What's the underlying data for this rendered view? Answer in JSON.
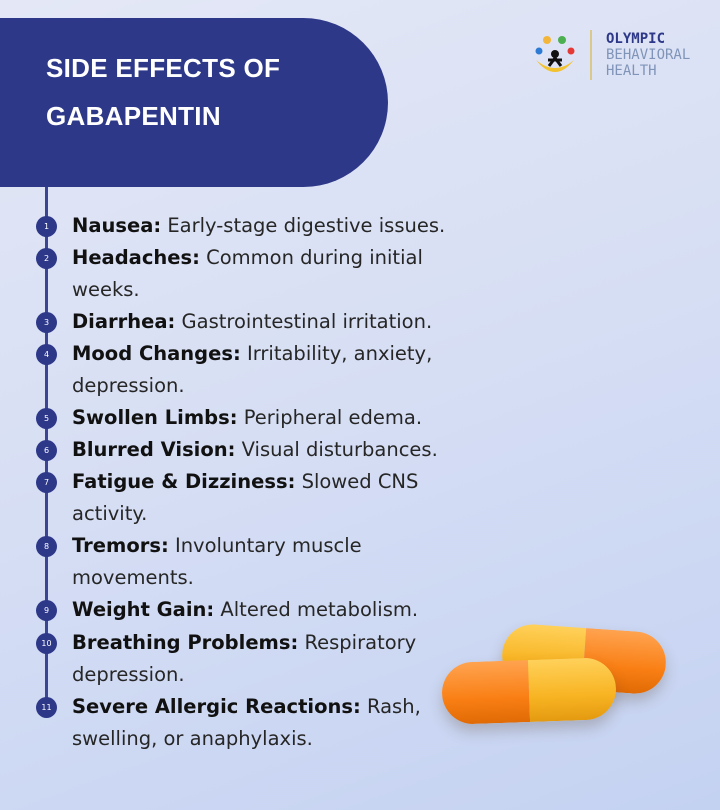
{
  "header": {
    "title_line1": "SIDE EFFECTS OF",
    "title_line2": "GABAPENTIN"
  },
  "logo": {
    "line1": "OLYMPIC",
    "line2": "BEHAVIORAL",
    "line3": "HEALTH"
  },
  "colors": {
    "header": "#2d3889",
    "accent_yellow": "#f8b423",
    "accent_orange": "#f97f14"
  },
  "items": [
    {
      "num": "1",
      "term": "Nausea:",
      "desc": " Early-stage digestive issues.",
      "lines": 1
    },
    {
      "num": "2",
      "term": "Headaches:",
      "desc": " Common during initial weeks.",
      "lines": 2
    },
    {
      "num": "3",
      "term": "Diarrhea:",
      "desc": " Gastrointestinal irritation.",
      "lines": 1
    },
    {
      "num": "4",
      "term": "Mood Changes:",
      "desc": " Irritability, anxiety, depression.",
      "lines": 2
    },
    {
      "num": "5",
      "term": "Swollen Limbs:",
      "desc": " Peripheral edema.",
      "lines": 1
    },
    {
      "num": "6",
      "term": "Blurred Vision:",
      "desc": " Visual disturbances.",
      "lines": 1
    },
    {
      "num": "7",
      "term": "Fatigue & Dizziness:",
      "desc": " Slowed CNS activity.",
      "lines": 2
    },
    {
      "num": "8",
      "term": "Tremors:",
      "desc": " Involuntary muscle movements.",
      "lines": 2
    },
    {
      "num": "9",
      "term": "Weight Gain:",
      "desc": " Altered metabolism.",
      "lines": 1
    },
    {
      "num": "10",
      "term": "Breathing Problems:",
      "desc": " Respiratory depression.",
      "lines": 2
    },
    {
      "num": "11",
      "term": "Severe Allergic Reactions:",
      "desc": " Rash, swelling, or anaphylaxis.",
      "lines": 2
    }
  ]
}
